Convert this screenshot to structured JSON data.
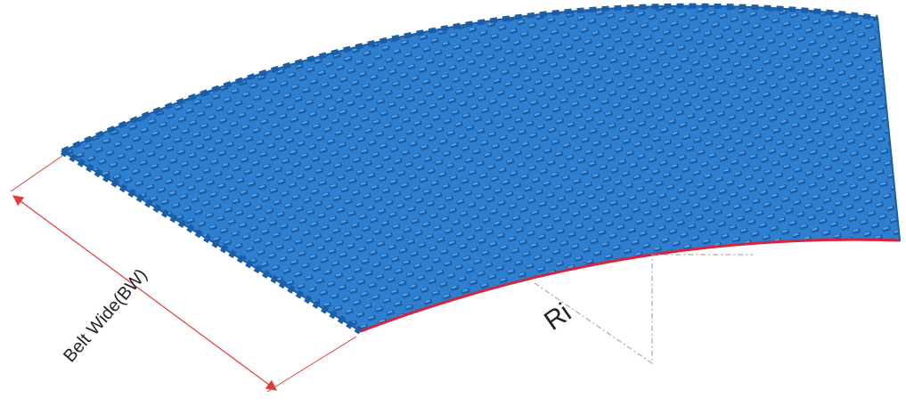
{
  "diagram": {
    "belt_width_label": "Belt Wide(BW)",
    "inner_radius_label": "Ri"
  },
  "colors": {
    "belt_fill": "#2f7fd0",
    "belt_dark": "#1c5ea6",
    "belt_light": "#5aa3e6",
    "edge_highlight": "#d8233a",
    "dimension_line": "#e23b3b",
    "radius_line": "#9a9a9a"
  }
}
